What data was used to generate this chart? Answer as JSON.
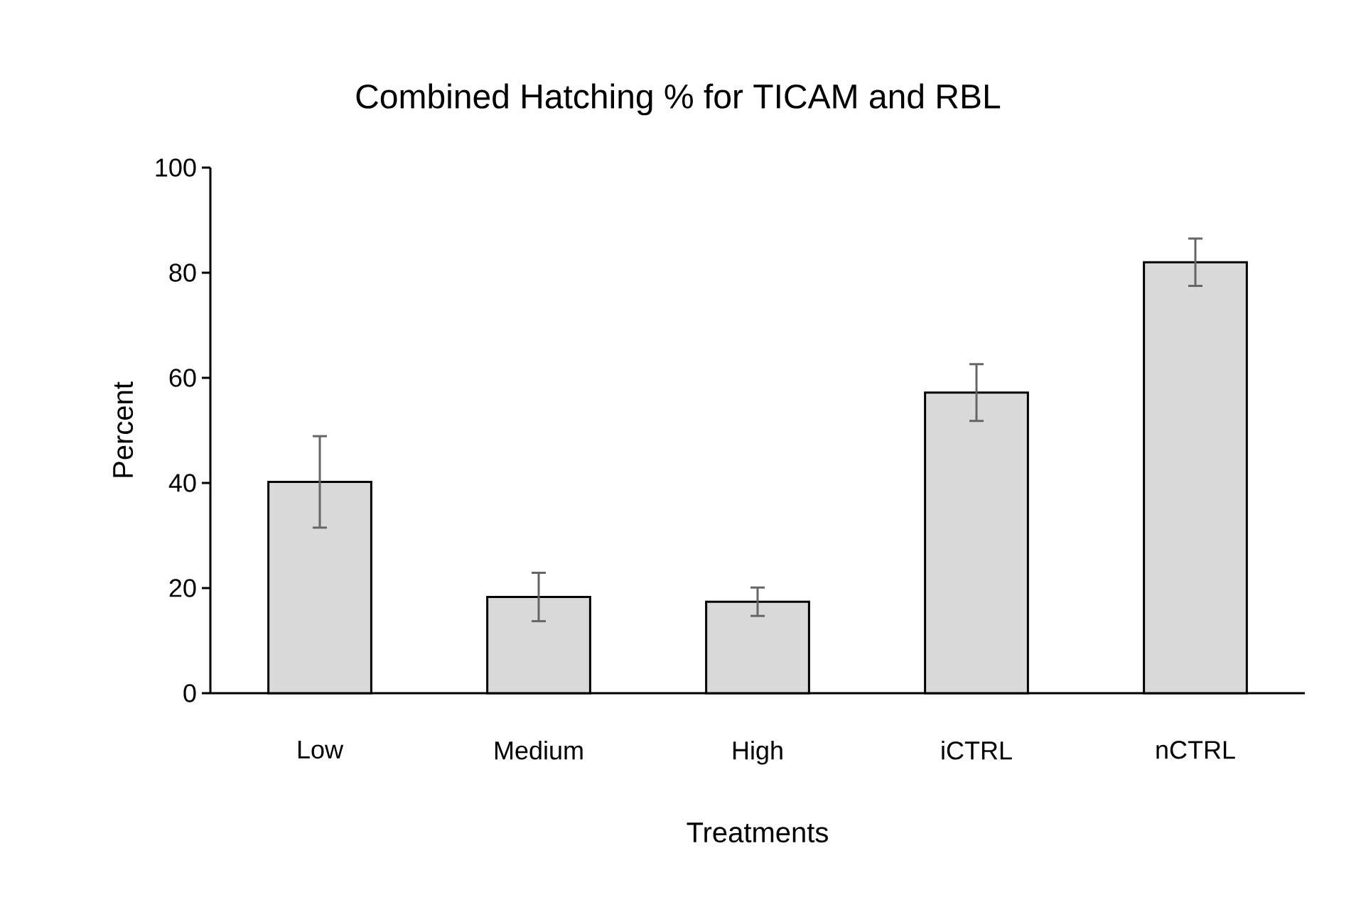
{
  "chart_data": {
    "type": "bar",
    "title": "Combined Hatching % for TICAM and RBL",
    "xlabel": "Treatments",
    "ylabel": "Percent",
    "categories": [
      "Low",
      "Medium",
      "High",
      "iCTRL",
      "nCTRL"
    ],
    "values": [
      40.2,
      18.3,
      17.4,
      57.2,
      82.0
    ],
    "errors": [
      8.7,
      4.6,
      2.7,
      5.4,
      4.5
    ],
    "color": "#d9d9d9",
    "ylim": [
      0,
      100
    ],
    "yticks": [
      0,
      20,
      40,
      60,
      80,
      100
    ]
  }
}
